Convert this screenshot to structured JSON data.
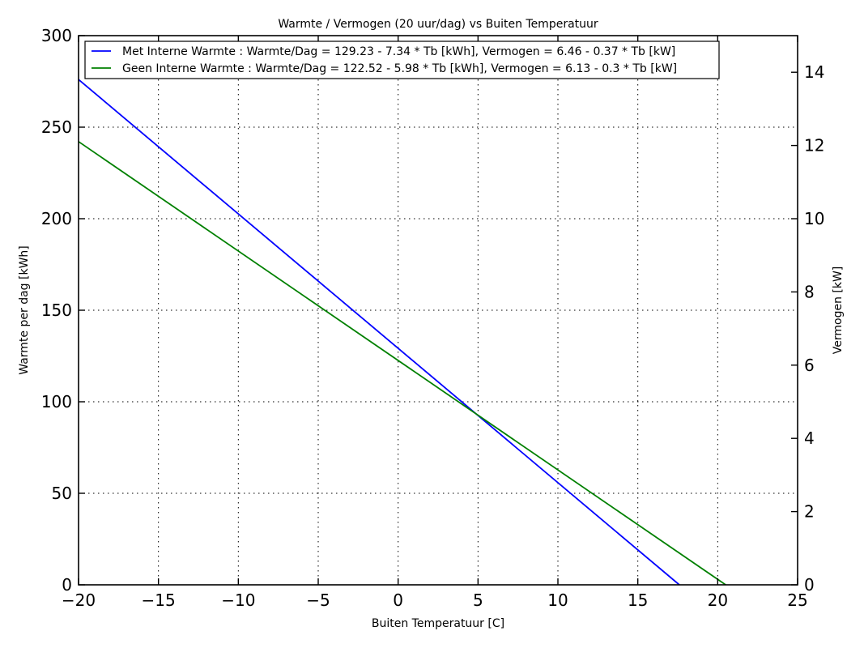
{
  "chart_data": {
    "type": "line",
    "title": "Warmte / Vermogen (20 uur/dag) vs Buiten Temperatuur",
    "xlabel": "Buiten Temperatuur [C]",
    "ylabel": "Warmte per dag [kWh]",
    "y2label": "Vermogen [kW]",
    "xlim": [
      -20,
      25
    ],
    "ylim": [
      0,
      300
    ],
    "y2lim": [
      0,
      15
    ],
    "xticks": [
      -20,
      -15,
      -10,
      -5,
      0,
      5,
      10,
      15,
      20,
      25
    ],
    "xtick_labels": [
      "−20",
      "−15",
      "−10",
      "−5",
      "0",
      "5",
      "10",
      "15",
      "20",
      "25"
    ],
    "yticks": [
      0,
      50,
      100,
      150,
      200,
      250,
      300
    ],
    "ytick_labels": [
      "0",
      "50",
      "100",
      "150",
      "200",
      "250",
      "300"
    ],
    "y2ticks": [
      0,
      2,
      4,
      6,
      8,
      10,
      12,
      14
    ],
    "y2tick_labels": [
      "0",
      "2",
      "4",
      "6",
      "8",
      "10",
      "12",
      "14"
    ],
    "grid": true,
    "legend_position": "top-left",
    "series": [
      {
        "name": "Met Interne Warmte : Warmte/Dag = 129.23 - 7.34 * Tb [kWh], Vermogen = 6.46 - 0.37 * Tb [kW]",
        "color": "#0000ff",
        "x": [
          -20,
          17.6
        ],
        "y": [
          276.03,
          0
        ]
      },
      {
        "name": "Geen Interne Warmte : Warmte/Dag = 122.52 - 5.98 * Tb [kWh], Vermogen = 6.13 - 0.3 * Tb [kW]",
        "color": "#008000",
        "x": [
          -20,
          20.5
        ],
        "y": [
          242.12,
          0
        ]
      }
    ]
  }
}
